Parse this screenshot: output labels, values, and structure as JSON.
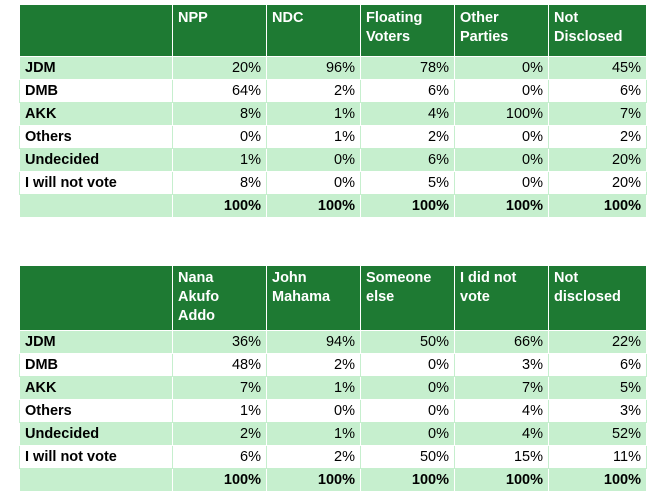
{
  "table1": {
    "headers": [
      "NPP",
      "NDC",
      "Floating Voters",
      "Other Parties",
      "Not Disclosed"
    ],
    "header_lines": [
      [
        "NPP"
      ],
      [
        "NDC"
      ],
      [
        "Floating",
        "Voters"
      ],
      [
        "Other",
        "Parties"
      ],
      [
        "Not",
        "Disclosed"
      ]
    ],
    "rows": [
      {
        "label": "JDM",
        "values": [
          "20%",
          "96%",
          "78%",
          "0%",
          "45%"
        ]
      },
      {
        "label": "DMB",
        "values": [
          "64%",
          "2%",
          "6%",
          "0%",
          "6%"
        ]
      },
      {
        "label": "AKK",
        "values": [
          "8%",
          "1%",
          "4%",
          "100%",
          "7%"
        ]
      },
      {
        "label": "Others",
        "values": [
          "0%",
          "1%",
          "2%",
          "0%",
          "2%"
        ]
      },
      {
        "label": "Undecided",
        "values": [
          "1%",
          "0%",
          "6%",
          "0%",
          "20%"
        ]
      },
      {
        "label": "I will not vote",
        "values": [
          "8%",
          "0%",
          "5%",
          "0%",
          "20%"
        ]
      }
    ],
    "totals": [
      "100%",
      "100%",
      "100%",
      "100%",
      "100%"
    ]
  },
  "table2": {
    "headers": [
      "Nana Akufo Addo",
      "John Mahama",
      "Someone else",
      "I did not vote",
      "Not disclosed"
    ],
    "header_lines": [
      [
        "Nana",
        "Akufo",
        "Addo"
      ],
      [
        "John",
        "Mahama"
      ],
      [
        "Someone",
        "else"
      ],
      [
        "I did not",
        "vote"
      ],
      [
        "Not",
        "disclosed"
      ]
    ],
    "rows": [
      {
        "label": "JDM",
        "values": [
          "36%",
          "94%",
          "50%",
          "66%",
          "22%"
        ]
      },
      {
        "label": "DMB",
        "values": [
          "48%",
          "2%",
          "0%",
          "3%",
          "6%"
        ]
      },
      {
        "label": "AKK",
        "values": [
          "7%",
          "1%",
          "0%",
          "7%",
          "5%"
        ]
      },
      {
        "label": "Others",
        "values": [
          "1%",
          "0%",
          "0%",
          "4%",
          "3%"
        ]
      },
      {
        "label": "Undecided",
        "values": [
          "2%",
          "1%",
          "0%",
          "4%",
          "52%"
        ]
      },
      {
        "label": "I will not vote",
        "values": [
          "6%",
          "2%",
          "50%",
          "15%",
          "11%"
        ]
      }
    ],
    "totals": [
      "100%",
      "100%",
      "100%",
      "100%",
      "100%"
    ]
  },
  "colors": {
    "header_bg": "#1e7a33",
    "header_text": "#ffffff",
    "shade_row": "#c6efce",
    "plain_row": "#ffffff"
  }
}
